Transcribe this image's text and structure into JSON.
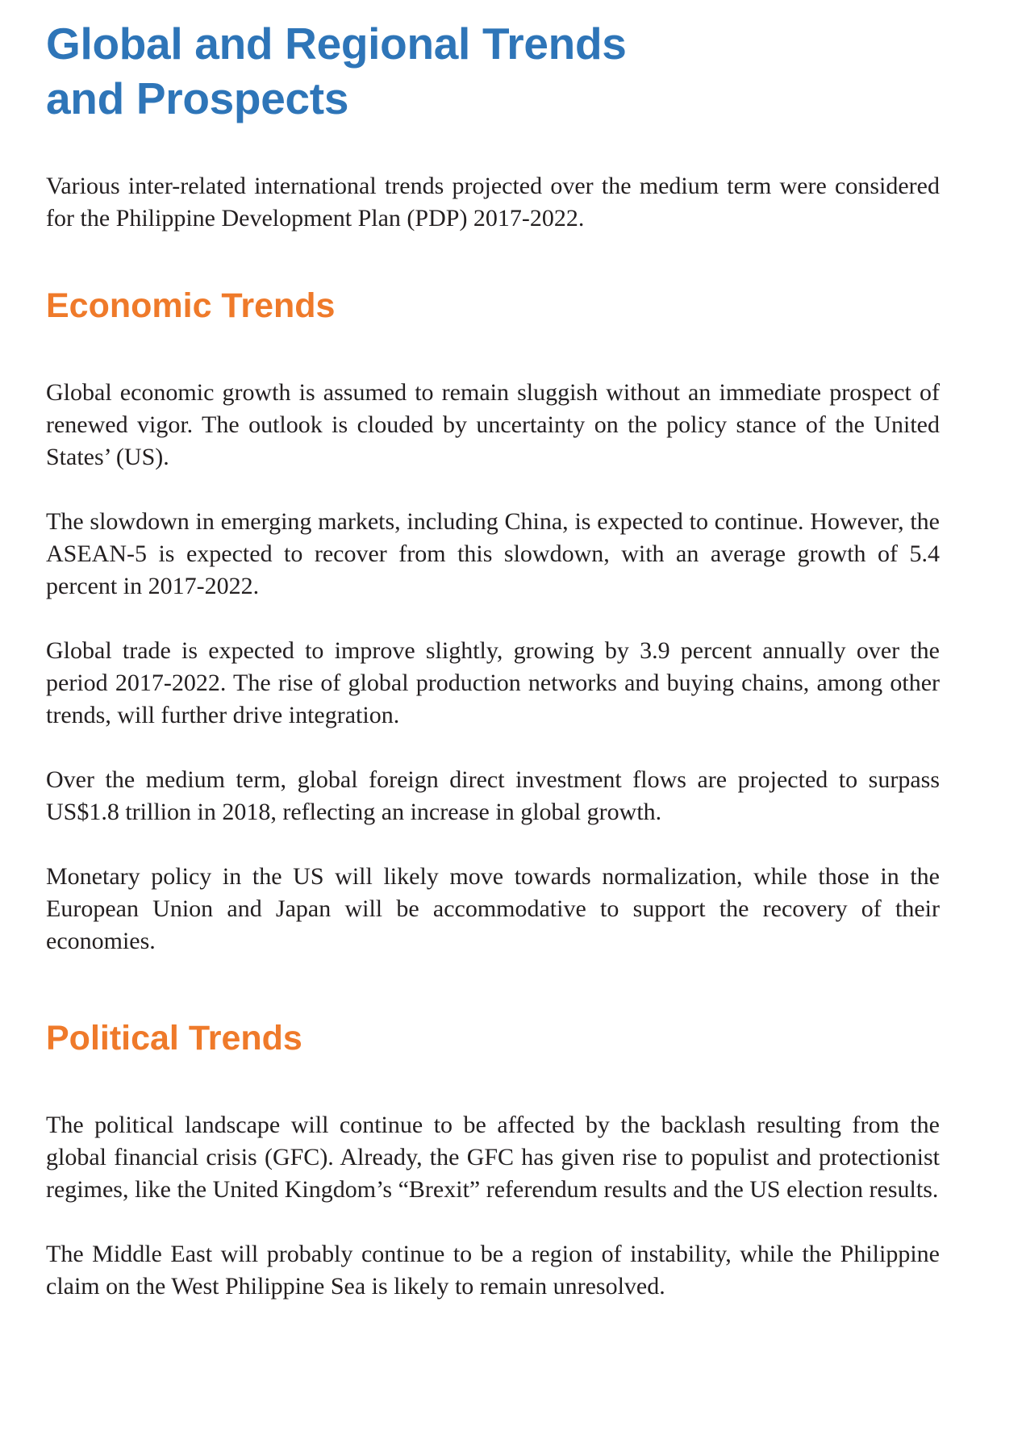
{
  "title": {
    "line1": "Global and Regional Trends",
    "line2": "and Prospects"
  },
  "intro": "Various inter-related international trends projected over the medium term were considered for the Philippine Development Plan (PDP) 2017-2022.",
  "economic": {
    "heading": "Economic Trends",
    "paragraphs": [
      "Global economic growth is assumed to remain sluggish without an immediate prospect of renewed vigor. The outlook is clouded by uncertainty on the policy stance of the United States’ (US).",
      "The slowdown in emerging markets, including China, is expected to continue. However, the ASEAN-5 is expected to recover from this slowdown, with an average growth of 5.4 percent in 2017-2022.",
      "Global trade is expected to improve slightly, growing by 3.9 percent annually over the period 2017-2022. The rise of global production networks and buying chains, among other trends, will further drive integration.",
      "Over the medium term, global foreign direct investment flows are projected to surpass US$1.8 trillion in 2018, reflecting an increase in global growth.",
      "Monetary policy in the US will likely move towards normalization, while those in the European Union and Japan will be accommodative to support the recovery of their economies."
    ]
  },
  "political": {
    "heading": "Political Trends",
    "paragraphs": [
      "The political landscape will continue to be affected by the backlash resulting from the global financial crisis (GFC). Already, the GFC has given rise to populist and protectionist regimes, like the United Kingdom’s “Brexit” referendum results and the US election results.",
      "The Middle East will probably continue to be a region of instability, while the Philippine claim on the West Philippine Sea is likely to remain unresolved."
    ]
  },
  "colors": {
    "title": "#2e75b8",
    "section_heading": "#ef7a2a",
    "body_text": "#231f20"
  }
}
